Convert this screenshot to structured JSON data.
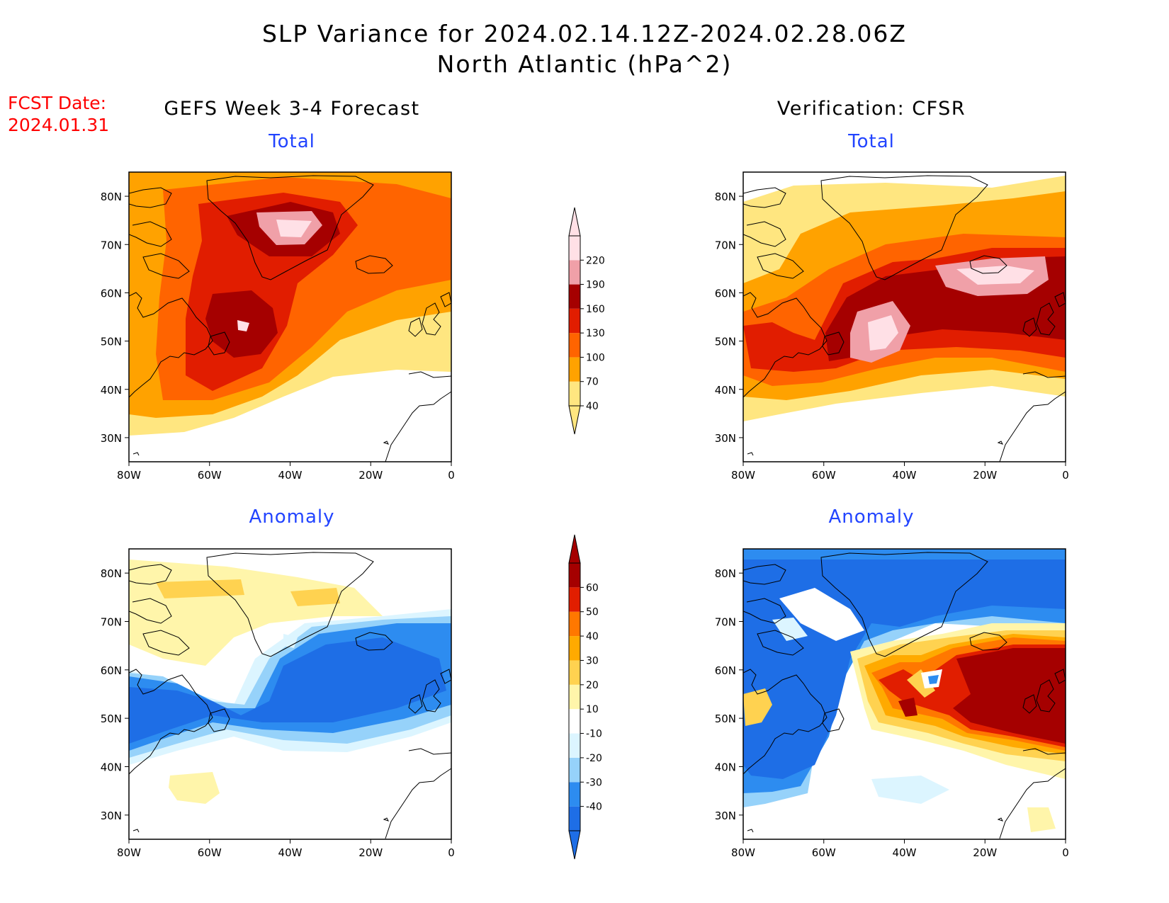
{
  "title_line1": "SLP Variance for 2024.02.14.12Z-2024.02.28.06Z",
  "title_line2": "North Atlantic (hPa^2)",
  "fcst_label": "FCST Date:",
  "fcst_date": "2024.01.31",
  "left_column_title": "GEFS Week 3-4 Forecast",
  "right_column_title": "Verification: CFSR",
  "colors": {
    "title": "#000000",
    "fcst": "#ff0000",
    "subtitle": "#2244ff",
    "total_scale": [
      "#ffe680",
      "#ffa200",
      "#ff6400",
      "#e11d00",
      "#a50000",
      "#f0a0a8",
      "#ffe0e6"
    ],
    "anomaly_scale": [
      "#1e6ee6",
      "#2d8cf0",
      "#96d2fa",
      "#dcf5ff",
      "#ffffff",
      "#fff5aa",
      "#ffd250",
      "#ffaa00",
      "#ff7800",
      "#e11e00",
      "#a50000"
    ]
  },
  "map": {
    "lon_ticks": [
      "80W",
      "60W",
      "40W",
      "20W",
      "0"
    ],
    "lat_ticks": [
      "80N",
      "70N",
      "60N",
      "50N",
      "40N",
      "30N"
    ],
    "lon_range": [
      -80,
      0
    ],
    "lat_range": [
      25,
      85
    ]
  },
  "panels": [
    {
      "id": "forecast-total",
      "subtitle": "Total",
      "kind": "total"
    },
    {
      "id": "verification-total",
      "subtitle": "Total",
      "kind": "total"
    },
    {
      "id": "forecast-anomaly",
      "subtitle": "Anomaly",
      "kind": "anomaly"
    },
    {
      "id": "verification-anomaly",
      "subtitle": "Anomaly",
      "kind": "anomaly"
    }
  ],
  "total_colorbar": {
    "labels": [
      "40",
      "70",
      "100",
      "130",
      "160",
      "190",
      "220"
    ]
  },
  "anomaly_colorbar": {
    "labels": [
      "-40",
      "-30",
      "-20",
      "-10",
      "10",
      "20",
      "30",
      "40",
      "50",
      "60"
    ]
  }
}
